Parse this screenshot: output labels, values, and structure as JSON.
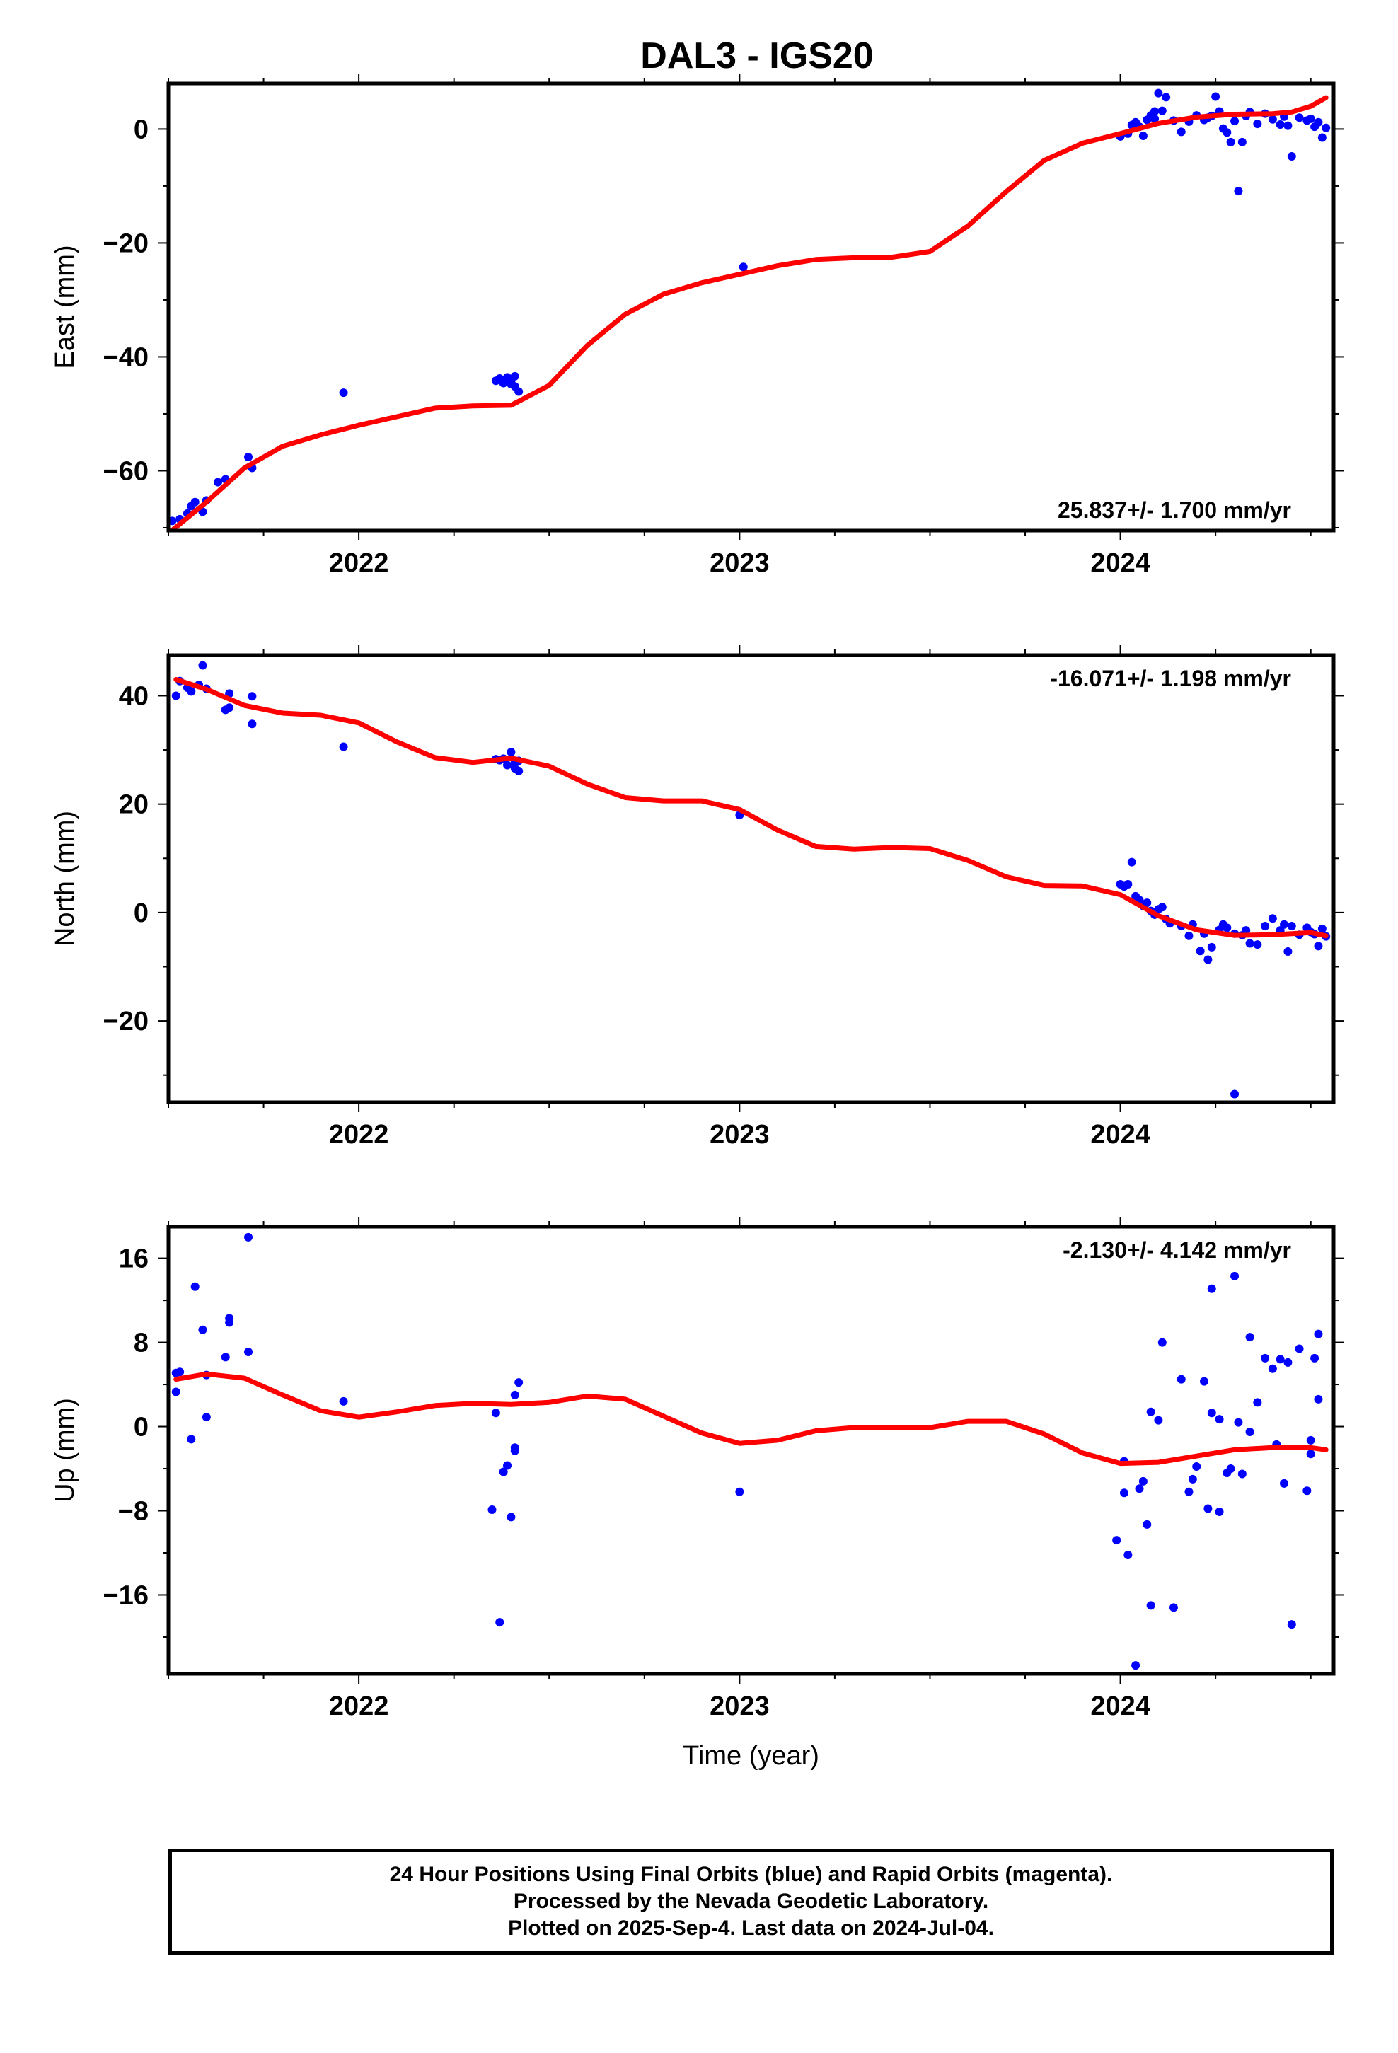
{
  "page_title": "DAL3 - IGS20",
  "colors": {
    "final_orbit_points": "#0000ff",
    "trend_line": "#ff0000",
    "frame": "#000000"
  },
  "footer": {
    "line1": "24 Hour Positions Using Final Orbits (blue) and Rapid Orbits (magenta).",
    "line2": "Processed by the Nevada Geodetic Laboratory.",
    "line3": "Plotted on 2025-Sep-4. Last data on 2024-Jul-04."
  },
  "chart_data": [
    {
      "type": "scatter",
      "title": "DAL3 - IGS20",
      "ylabel": "East (mm)",
      "xlabel": "",
      "xlim": [
        2021.5,
        2024.56
      ],
      "ylim": [
        -70.5,
        8
      ],
      "xticks": [
        2022,
        2023,
        2024
      ],
      "yticks": [
        0,
        -20,
        -40,
        -60
      ],
      "grid": false,
      "rate_label": "25.837+/- 1.700 mm/yr",
      "rate_label_position": "bottom-right",
      "points": [
        [
          2021.51,
          -68.8
        ],
        [
          2021.53,
          -68.5
        ],
        [
          2021.55,
          -67.5
        ],
        [
          2021.56,
          -66.2
        ],
        [
          2021.57,
          -65.5
        ],
        [
          2021.59,
          -67.2
        ],
        [
          2021.6,
          -65.2
        ],
        [
          2021.63,
          -62.0
        ],
        [
          2021.65,
          -61.5
        ],
        [
          2021.71,
          -57.6
        ],
        [
          2021.72,
          -59.5
        ],
        [
          2021.96,
          -46.3
        ],
        [
          2022.36,
          -44.2
        ],
        [
          2022.37,
          -43.8
        ],
        [
          2022.38,
          -44.6
        ],
        [
          2022.39,
          -43.6
        ],
        [
          2022.4,
          -44.3
        ],
        [
          2022.41,
          -43.4
        ],
        [
          2022.41,
          -45.2
        ],
        [
          2022.42,
          -46.1
        ],
        [
          2022.4,
          -44.8
        ],
        [
          2023.01,
          -24.2
        ],
        [
          2024.0,
          -1.3
        ],
        [
          2024.02,
          -0.8
        ],
        [
          2024.03,
          0.7
        ],
        [
          2024.04,
          1.2
        ],
        [
          2024.05,
          0.4
        ],
        [
          2024.06,
          -1.2
        ],
        [
          2024.07,
          1.6
        ],
        [
          2024.08,
          2.4
        ],
        [
          2024.09,
          3.1
        ],
        [
          2024.09,
          1.8
        ],
        [
          2024.1,
          6.3
        ],
        [
          2024.11,
          3.2
        ],
        [
          2024.12,
          5.6
        ],
        [
          2024.14,
          1.5
        ],
        [
          2024.16,
          -0.5
        ],
        [
          2024.18,
          1.3
        ],
        [
          2024.2,
          2.4
        ],
        [
          2024.22,
          1.6
        ],
        [
          2024.23,
          2.0
        ],
        [
          2024.24,
          2.3
        ],
        [
          2024.25,
          5.7
        ],
        [
          2024.26,
          3.1
        ],
        [
          2024.27,
          0.1
        ],
        [
          2024.28,
          -0.6
        ],
        [
          2024.29,
          -2.3
        ],
        [
          2024.3,
          1.4
        ],
        [
          2024.31,
          -10.9
        ],
        [
          2024.32,
          -2.3
        ],
        [
          2024.33,
          2.3
        ],
        [
          2024.34,
          3.0
        ],
        [
          2024.36,
          0.9
        ],
        [
          2024.38,
          2.7
        ],
        [
          2024.4,
          1.7
        ],
        [
          2024.42,
          0.8
        ],
        [
          2024.43,
          2.2
        ],
        [
          2024.44,
          0.6
        ],
        [
          2024.45,
          -4.8
        ],
        [
          2024.47,
          2.0
        ],
        [
          2024.49,
          1.5
        ],
        [
          2024.5,
          1.8
        ],
        [
          2024.51,
          0.4
        ],
        [
          2024.52,
          1.2
        ],
        [
          2024.53,
          -1.5
        ],
        [
          2024.54,
          0.2
        ]
      ],
      "trend": [
        [
          2021.5,
          -71.0
        ],
        [
          2021.6,
          -65.5
        ],
        [
          2021.7,
          -59.5
        ],
        [
          2021.8,
          -55.7
        ],
        [
          2021.9,
          -53.7
        ],
        [
          2022.0,
          -52.0
        ],
        [
          2022.1,
          -50.5
        ],
        [
          2022.2,
          -49.0
        ],
        [
          2022.3,
          -48.6
        ],
        [
          2022.4,
          -48.5
        ],
        [
          2022.5,
          -45.0
        ],
        [
          2022.6,
          -38.0
        ],
        [
          2022.7,
          -32.5
        ],
        [
          2022.8,
          -29.0
        ],
        [
          2022.9,
          -27.0
        ],
        [
          2023.0,
          -25.5
        ],
        [
          2023.1,
          -24.0
        ],
        [
          2023.2,
          -22.9
        ],
        [
          2023.3,
          -22.6
        ],
        [
          2023.4,
          -22.5
        ],
        [
          2023.5,
          -21.5
        ],
        [
          2023.6,
          -17.0
        ],
        [
          2023.7,
          -11.0
        ],
        [
          2023.8,
          -5.5
        ],
        [
          2023.9,
          -2.5
        ],
        [
          2024.0,
          -0.8
        ],
        [
          2024.1,
          1.0
        ],
        [
          2024.2,
          2.1
        ],
        [
          2024.3,
          2.6
        ],
        [
          2024.4,
          2.7
        ],
        [
          2024.45,
          3.0
        ],
        [
          2024.5,
          4.0
        ],
        [
          2024.54,
          5.5
        ]
      ]
    },
    {
      "type": "scatter",
      "ylabel": "North (mm)",
      "xlabel": "",
      "xlim": [
        2021.5,
        2024.56
      ],
      "ylim": [
        -35,
        47.5
      ],
      "xticks": [
        2022,
        2023,
        2024
      ],
      "yticks": [
        40,
        20,
        0,
        -20
      ],
      "grid": false,
      "rate_label": "-16.071+/- 1.198 mm/yr",
      "rate_label_position": "top-right",
      "points": [
        [
          2021.52,
          40.0
        ],
        [
          2021.53,
          42.7
        ],
        [
          2021.55,
          41.5
        ],
        [
          2021.56,
          40.8
        ],
        [
          2021.58,
          42.0
        ],
        [
          2021.59,
          45.6
        ],
        [
          2021.6,
          41.3
        ],
        [
          2021.65,
          37.4
        ],
        [
          2021.66,
          40.4
        ],
        [
          2021.66,
          37.8
        ],
        [
          2021.72,
          34.8
        ],
        [
          2021.72,
          39.9
        ],
        [
          2021.96,
          30.6
        ],
        [
          2022.36,
          28.3
        ],
        [
          2022.37,
          28.1
        ],
        [
          2022.38,
          28.4
        ],
        [
          2022.39,
          27.2
        ],
        [
          2022.4,
          29.6
        ],
        [
          2022.41,
          27.7
        ],
        [
          2022.41,
          26.6
        ],
        [
          2022.42,
          26.1
        ],
        [
          2022.42,
          28.0
        ],
        [
          2023.0,
          18.0
        ],
        [
          2024.0,
          5.2
        ],
        [
          2024.01,
          4.8
        ],
        [
          2024.02,
          5.2
        ],
        [
          2024.03,
          9.3
        ],
        [
          2024.04,
          3.0
        ],
        [
          2024.05,
          2.3
        ],
        [
          2024.06,
          1.2
        ],
        [
          2024.07,
          1.8
        ],
        [
          2024.08,
          0.3
        ],
        [
          2024.09,
          -0.4
        ],
        [
          2024.1,
          0.6
        ],
        [
          2024.11,
          1.0
        ],
        [
          2024.12,
          -1.2
        ],
        [
          2024.13,
          -2.0
        ],
        [
          2024.16,
          -2.5
        ],
        [
          2024.18,
          -4.3
        ],
        [
          2024.19,
          -2.2
        ],
        [
          2024.21,
          -7.1
        ],
        [
          2024.22,
          -3.9
        ],
        [
          2024.23,
          -8.7
        ],
        [
          2024.24,
          -6.4
        ],
        [
          2024.26,
          -3.2
        ],
        [
          2024.27,
          -2.2
        ],
        [
          2024.28,
          -2.8
        ],
        [
          2024.3,
          -3.9
        ],
        [
          2024.32,
          -4.2
        ],
        [
          2024.33,
          -3.3
        ],
        [
          2024.34,
          -5.7
        ],
        [
          2024.36,
          -5.9
        ],
        [
          2024.38,
          -2.5
        ],
        [
          2024.4,
          -1.1
        ],
        [
          2024.42,
          -3.3
        ],
        [
          2024.43,
          -2.2
        ],
        [
          2024.44,
          -7.2
        ],
        [
          2024.45,
          -2.5
        ],
        [
          2024.47,
          -4.1
        ],
        [
          2024.49,
          -2.8
        ],
        [
          2024.5,
          -3.6
        ],
        [
          2024.51,
          -4.0
        ],
        [
          2024.52,
          -6.2
        ],
        [
          2024.53,
          -3.0
        ],
        [
          2024.54,
          -4.4
        ],
        [
          2024.3,
          -33.5
        ]
      ],
      "trend": [
        [
          2021.52,
          43.0
        ],
        [
          2021.6,
          41.2
        ],
        [
          2021.7,
          38.2
        ],
        [
          2021.8,
          36.8
        ],
        [
          2021.9,
          36.4
        ],
        [
          2022.0,
          35.0
        ],
        [
          2022.1,
          31.5
        ],
        [
          2022.2,
          28.6
        ],
        [
          2022.3,
          27.7
        ],
        [
          2022.4,
          28.5
        ],
        [
          2022.5,
          27.0
        ],
        [
          2022.6,
          23.7
        ],
        [
          2022.7,
          21.2
        ],
        [
          2022.8,
          20.6
        ],
        [
          2022.9,
          20.6
        ],
        [
          2023.0,
          19.0
        ],
        [
          2023.1,
          15.2
        ],
        [
          2023.2,
          12.2
        ],
        [
          2023.3,
          11.7
        ],
        [
          2023.4,
          12.0
        ],
        [
          2023.5,
          11.8
        ],
        [
          2023.6,
          9.6
        ],
        [
          2023.7,
          6.6
        ],
        [
          2023.8,
          5.0
        ],
        [
          2023.9,
          4.9
        ],
        [
          2024.0,
          3.3
        ],
        [
          2024.1,
          -0.6
        ],
        [
          2024.2,
          -3.2
        ],
        [
          2024.3,
          -4.2
        ],
        [
          2024.4,
          -4.1
        ],
        [
          2024.5,
          -3.7
        ],
        [
          2024.54,
          -4.3
        ]
      ]
    },
    {
      "type": "scatter",
      "ylabel": "Up (mm)",
      "xlabel": "Time (year)",
      "xlim": [
        2021.5,
        2024.56
      ],
      "ylim": [
        -23.5,
        19
      ],
      "xticks": [
        2022,
        2023,
        2024
      ],
      "yticks": [
        16,
        8,
        0,
        -8,
        -16
      ],
      "grid": false,
      "rate_label": "-2.130+/- 4.142 mm/yr",
      "rate_label_position": "top-right",
      "points": [
        [
          2021.52,
          5.1
        ],
        [
          2021.53,
          5.2
        ],
        [
          2021.52,
          3.3
        ],
        [
          2021.56,
          -1.2
        ],
        [
          2021.57,
          13.3
        ],
        [
          2021.59,
          9.2
        ],
        [
          2021.6,
          4.9
        ],
        [
          2021.6,
          0.9
        ],
        [
          2021.65,
          6.6
        ],
        [
          2021.66,
          9.9
        ],
        [
          2021.66,
          10.3
        ],
        [
          2021.71,
          18.0
        ],
        [
          2021.71,
          7.1
        ],
        [
          2021.96,
          2.4
        ],
        [
          2022.35,
          -7.9
        ],
        [
          2022.36,
          1.3
        ],
        [
          2022.37,
          -18.6
        ],
        [
          2022.38,
          -4.3
        ],
        [
          2022.39,
          -3.7
        ],
        [
          2022.4,
          -8.6
        ],
        [
          2022.41,
          -2.0
        ],
        [
          2022.41,
          -2.3
        ],
        [
          2022.41,
          3.0
        ],
        [
          2022.42,
          4.2
        ],
        [
          2023.0,
          -6.2
        ],
        [
          2023.99,
          -10.8
        ],
        [
          2024.01,
          -3.3
        ],
        [
          2024.01,
          -6.3
        ],
        [
          2024.02,
          -12.2
        ],
        [
          2024.04,
          -22.7
        ],
        [
          2024.05,
          -5.9
        ],
        [
          2024.06,
          -5.2
        ],
        [
          2024.07,
          -9.3
        ],
        [
          2024.08,
          1.4
        ],
        [
          2024.08,
          -17.0
        ],
        [
          2024.1,
          0.6
        ],
        [
          2024.11,
          8.0
        ],
        [
          2024.14,
          -17.2
        ],
        [
          2024.16,
          4.5
        ],
        [
          2024.18,
          -6.2
        ],
        [
          2024.19,
          -5.0
        ],
        [
          2024.2,
          -3.8
        ],
        [
          2024.22,
          4.3
        ],
        [
          2024.23,
          -7.8
        ],
        [
          2024.24,
          13.1
        ],
        [
          2024.24,
          1.3
        ],
        [
          2024.26,
          0.7
        ],
        [
          2024.26,
          -8.1
        ],
        [
          2024.28,
          -4.4
        ],
        [
          2024.29,
          -4.0
        ],
        [
          2024.3,
          14.3
        ],
        [
          2024.31,
          0.4
        ],
        [
          2024.32,
          -4.5
        ],
        [
          2024.34,
          -0.5
        ],
        [
          2024.34,
          8.5
        ],
        [
          2024.36,
          2.3
        ],
        [
          2024.38,
          6.5
        ],
        [
          2024.4,
          5.5
        ],
        [
          2024.41,
          -1.7
        ],
        [
          2024.42,
          6.4
        ],
        [
          2024.43,
          -5.4
        ],
        [
          2024.44,
          6.1
        ],
        [
          2024.45,
          -18.8
        ],
        [
          2024.47,
          7.4
        ],
        [
          2024.49,
          -6.1
        ],
        [
          2024.5,
          -1.3
        ],
        [
          2024.5,
          -2.6
        ],
        [
          2024.51,
          6.5
        ],
        [
          2024.52,
          2.6
        ],
        [
          2024.52,
          8.8
        ]
      ],
      "trend": [
        [
          2021.52,
          4.5
        ],
        [
          2021.6,
          5.0
        ],
        [
          2021.7,
          4.6
        ],
        [
          2021.8,
          3.0
        ],
        [
          2021.9,
          1.5
        ],
        [
          2022.0,
          0.9
        ],
        [
          2022.1,
          1.4
        ],
        [
          2022.2,
          2.0
        ],
        [
          2022.3,
          2.2
        ],
        [
          2022.4,
          2.1
        ],
        [
          2022.5,
          2.3
        ],
        [
          2022.6,
          2.9
        ],
        [
          2022.7,
          2.6
        ],
        [
          2022.8,
          1.0
        ],
        [
          2022.9,
          -0.6
        ],
        [
          2023.0,
          -1.6
        ],
        [
          2023.1,
          -1.3
        ],
        [
          2023.2,
          -0.4
        ],
        [
          2023.3,
          -0.1
        ],
        [
          2023.4,
          -0.1
        ],
        [
          2023.5,
          -0.1
        ],
        [
          2023.6,
          0.5
        ],
        [
          2023.7,
          0.5
        ],
        [
          2023.8,
          -0.7
        ],
        [
          2023.9,
          -2.5
        ],
        [
          2024.0,
          -3.5
        ],
        [
          2024.1,
          -3.4
        ],
        [
          2024.2,
          -2.8
        ],
        [
          2024.3,
          -2.2
        ],
        [
          2024.4,
          -2.0
        ],
        [
          2024.5,
          -2.0
        ],
        [
          2024.54,
          -2.2
        ]
      ]
    }
  ]
}
